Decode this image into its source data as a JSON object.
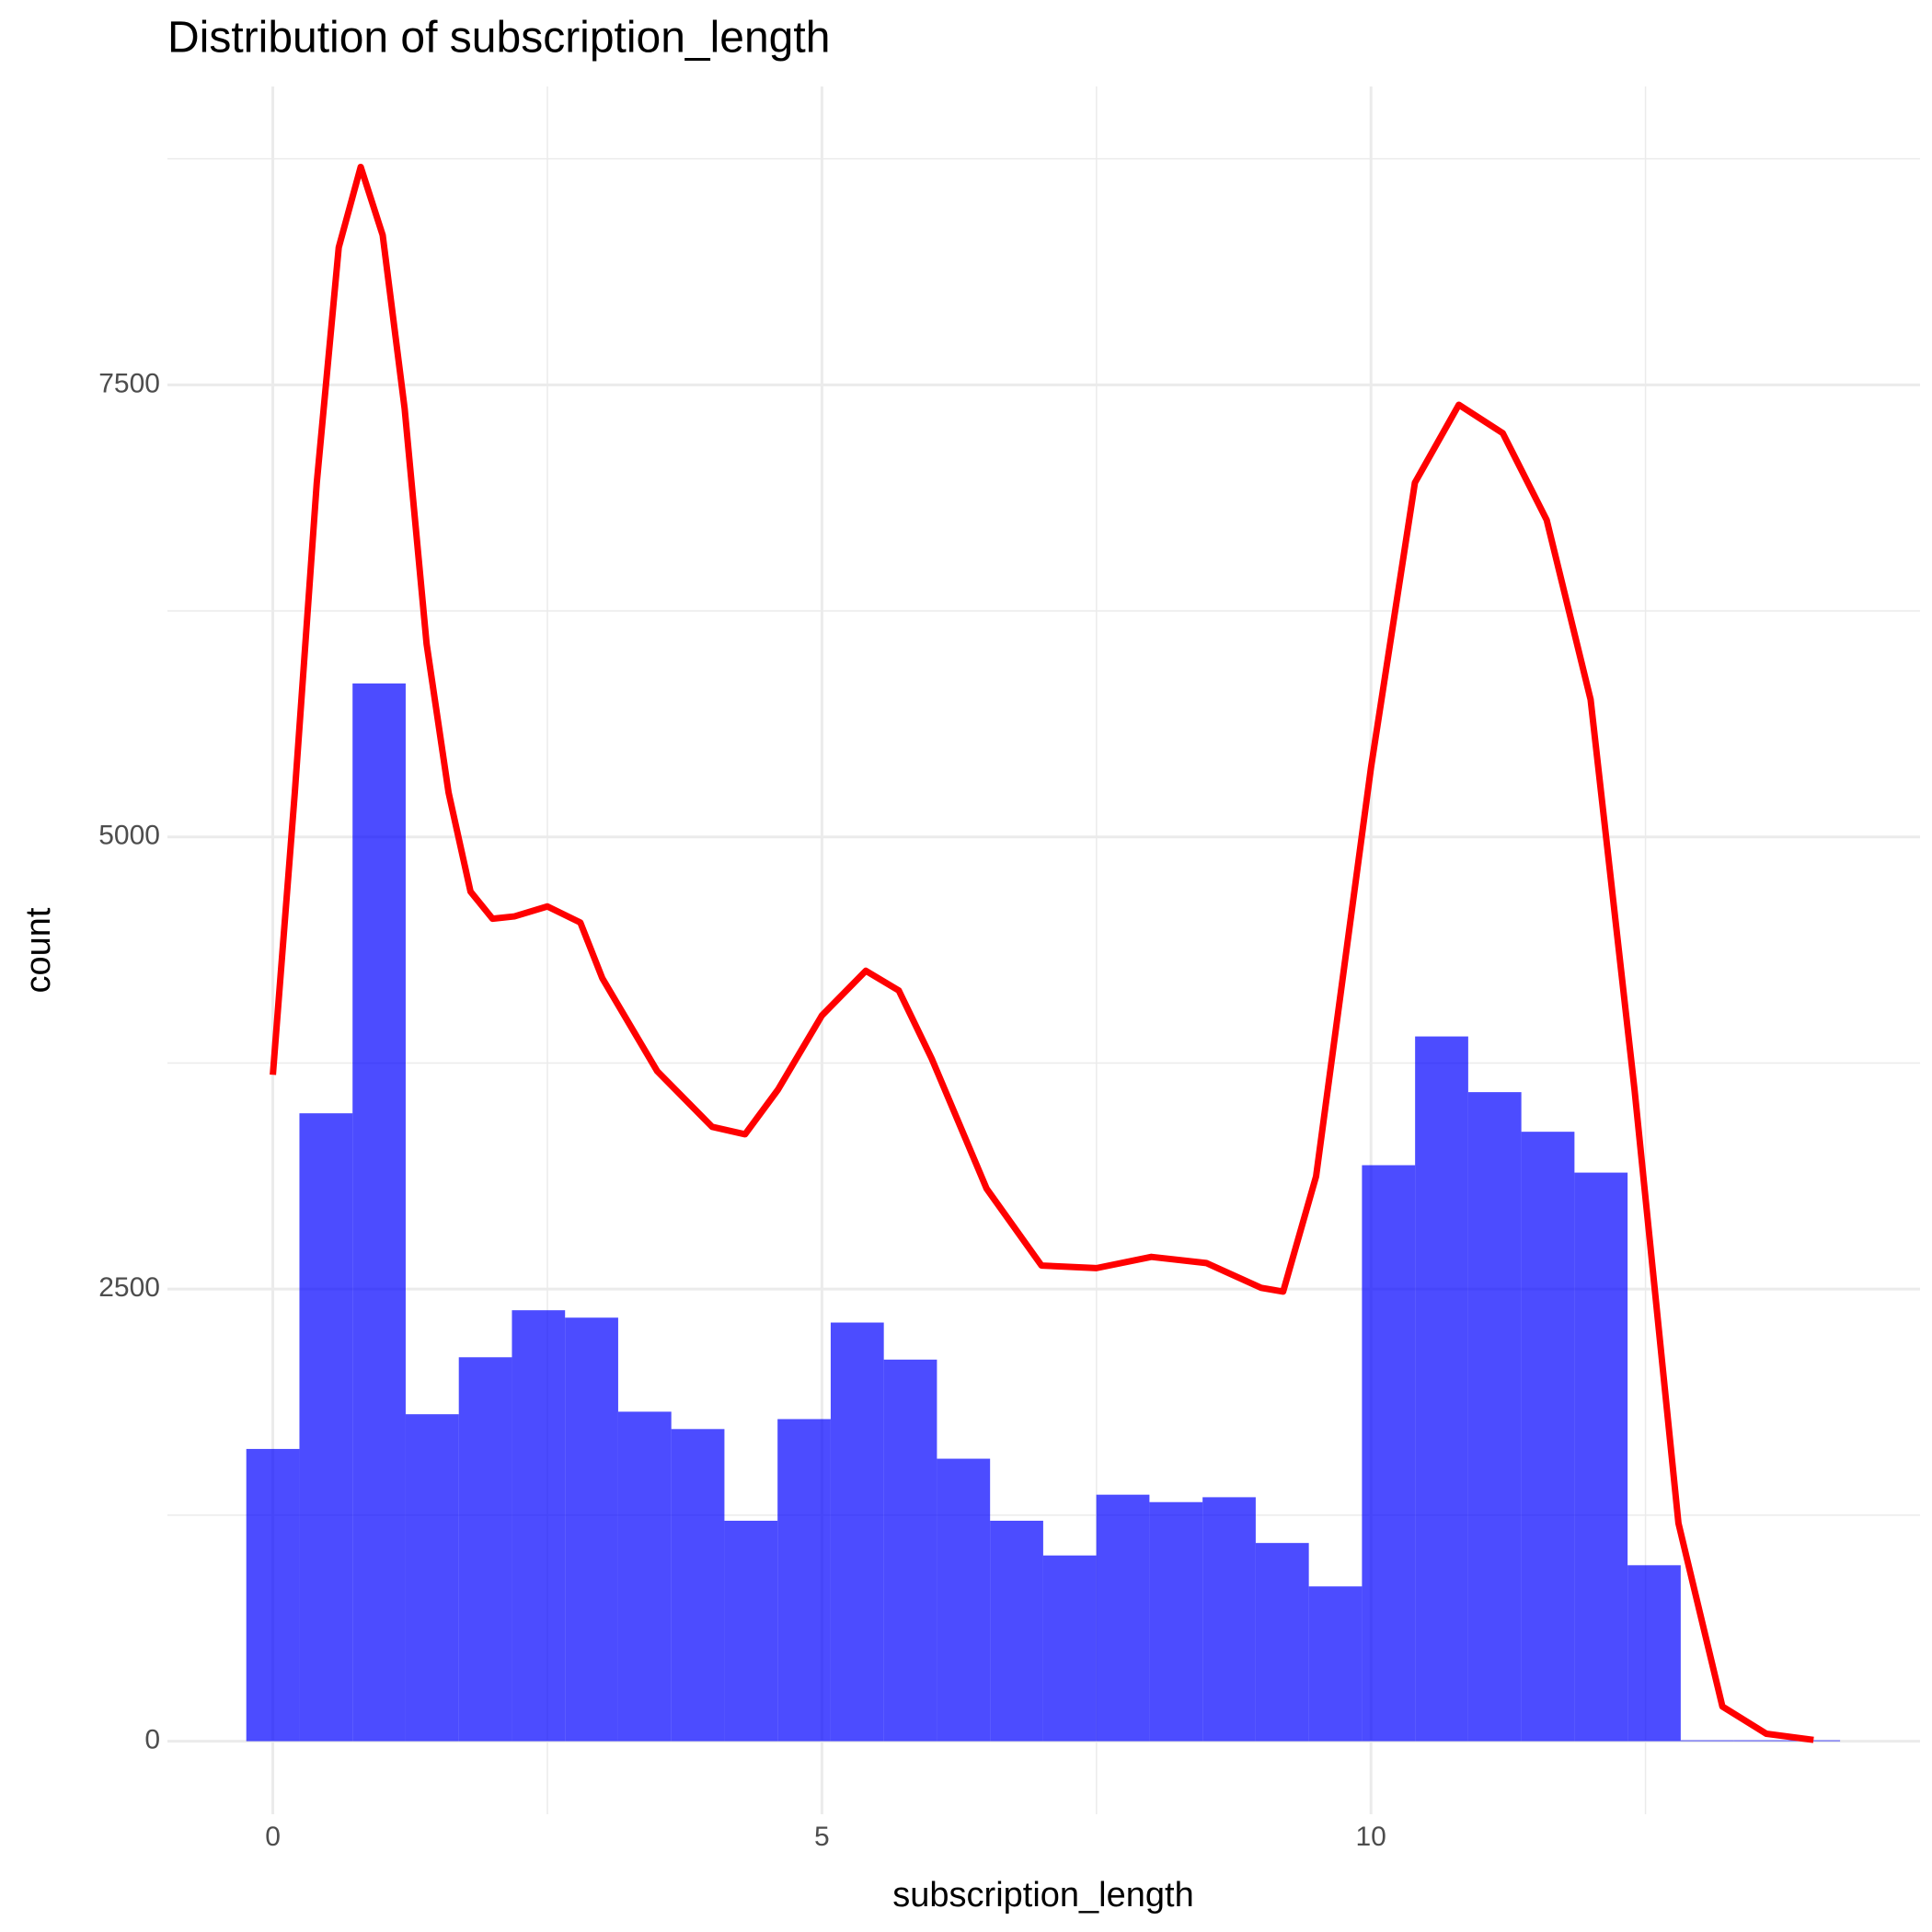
{
  "chart_data": {
    "type": "histogram",
    "title": "Distribution of subscription_length",
    "x_label": "subscription_length",
    "y_label": "count",
    "bins": [
      -0.2419,
      0.2419,
      0.7257,
      1.2095,
      1.6933,
      2.1771,
      2.6609,
      3.1447,
      3.6285,
      4.1123,
      4.5961,
      5.0799,
      5.5637,
      6.0475,
      6.5313,
      7.0151,
      7.4989,
      7.9827,
      8.4665,
      8.9503,
      9.4341,
      9.9179,
      10.4017,
      10.8855,
      11.3693,
      11.8531,
      12.3369,
      12.8207,
      13.3045,
      13.7883,
      14.2721
    ],
    "counts": [
      1616,
      3472,
      5849,
      1808,
      2123,
      2383,
      2342,
      1822,
      1726,
      1219,
      1781,
      2315,
      2110,
      1562,
      1219,
      1027,
      1363,
      1322,
      1349,
      1096,
      856,
      3185,
      3897,
      3589,
      3370,
      3144,
      973,
      5,
      5,
      5
    ],
    "color": "#0000ff",
    "opacity": 0.7,
    "density": {
      "color": "#ff0000",
      "x": [
        0,
        0.2,
        0.4,
        0.6,
        0.8,
        1.0,
        1.2,
        1.4,
        1.6,
        1.8,
        2.0,
        2.2,
        2.5,
        2.8,
        3.0,
        3.5,
        4.0,
        4.3,
        4.6,
        5.0,
        5.4,
        5.7,
        6.0,
        6.5,
        7.0,
        7.5,
        8.0,
        8.5,
        9.0,
        9.2,
        9.5,
        10.0,
        10.4,
        10.8,
        11.2,
        11.6,
        12.0,
        12.4,
        12.8,
        13.2,
        13.6,
        14.03
      ],
      "values": [
        3685,
        5246,
        6959,
        8260,
        8705,
        8328,
        7369,
        6068,
        5246,
        4698,
        4548,
        4561,
        4616,
        4527,
        4219,
        3705,
        3397,
        3356,
        3603,
        4013,
        4260,
        4151,
        3774,
        3055,
        2630,
        2616,
        2678,
        2644,
        2507,
        2486,
        3123,
        5383,
        6959,
        7390,
        7233,
        6753,
        5760,
        3603,
        1205,
        192,
        41,
        7
      ]
    },
    "xlim": [
      -0.96,
      15.0
    ],
    "ylim": [
      -404,
      9150
    ],
    "xticks": [
      0,
      5,
      10
    ],
    "yticks": [
      0,
      2500,
      5000,
      7500
    ],
    "x_minor_ticks": [
      2.5,
      7.5,
      12.5
    ],
    "y_minor_ticks": [
      1250,
      3750,
      6250,
      8750
    ],
    "grid": true
  }
}
